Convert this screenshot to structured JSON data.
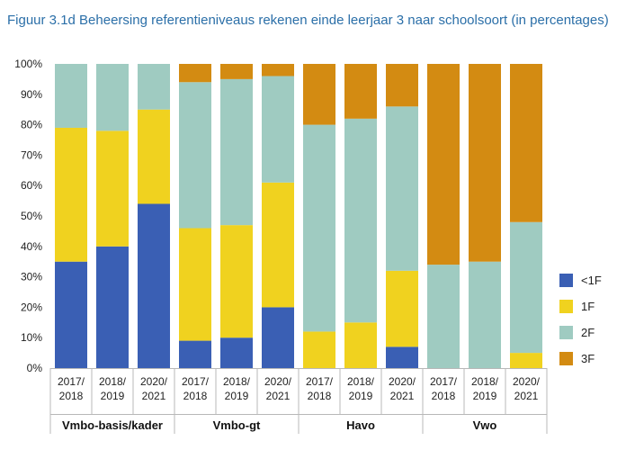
{
  "chart_data": {
    "type": "bar",
    "stacked": true,
    "title": "Figuur 3.1d  Beheersing referentieniveaus rekenen einde leerjaar 3 naar schoolsoort (in percentages)",
    "y_ticks": [
      "0%",
      "10%",
      "20%",
      "30%",
      "40%",
      "50%",
      "60%",
      "70%",
      "80%",
      "90%",
      "100%"
    ],
    "ylim": [
      0,
      100
    ],
    "grid": false,
    "legend_position": "right",
    "groups": [
      {
        "name": "Vmbo-basis/kader",
        "categories": [
          [
            "2017/",
            "2018"
          ],
          [
            "2018/",
            "2019"
          ],
          [
            "2020/",
            "2021"
          ]
        ]
      },
      {
        "name": "Vmbo-gt",
        "categories": [
          [
            "2017/",
            "2018"
          ],
          [
            "2018/",
            "2019"
          ],
          [
            "2020/",
            "2021"
          ]
        ]
      },
      {
        "name": "Havo",
        "categories": [
          [
            "2017/",
            "2018"
          ],
          [
            "2018/",
            "2019"
          ],
          [
            "2020/",
            "2021"
          ]
        ]
      },
      {
        "name": "Vwo",
        "categories": [
          [
            "2017/",
            "2018"
          ],
          [
            "2018/",
            "2019"
          ],
          [
            "2020/",
            "2021"
          ]
        ]
      }
    ],
    "series": [
      {
        "name": "<1F",
        "color": "#3a5fb4",
        "values": [
          35,
          40,
          54,
          9,
          10,
          20,
          0,
          0,
          7,
          0,
          0,
          0
        ]
      },
      {
        "name": "1F",
        "color": "#f0d21f",
        "values": [
          44,
          38,
          31,
          37,
          37,
          41,
          12,
          15,
          25,
          0,
          0,
          5
        ]
      },
      {
        "name": "2F",
        "color": "#9fcbc1",
        "values": [
          21,
          22,
          15,
          48,
          48,
          35,
          68,
          67,
          54,
          34,
          35,
          43
        ]
      },
      {
        "name": "3F",
        "color": "#d38b12",
        "values": [
          0,
          0,
          0,
          6,
          5,
          4,
          20,
          18,
          14,
          66,
          65,
          52
        ]
      }
    ]
  }
}
